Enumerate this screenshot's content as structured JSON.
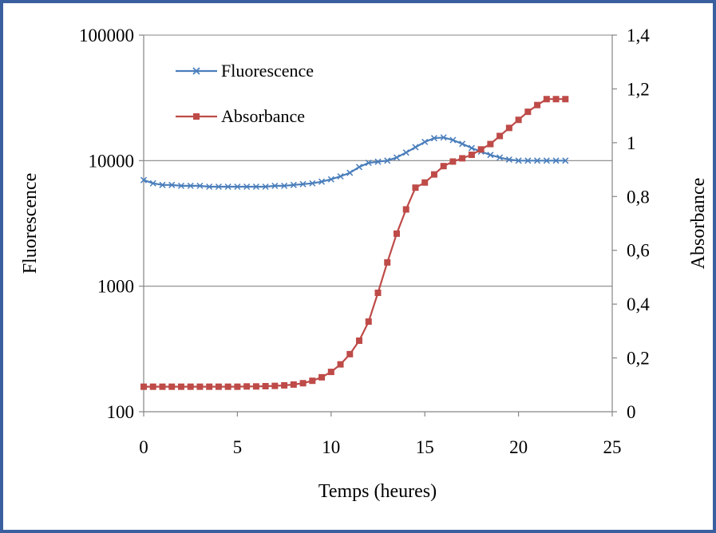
{
  "chart_data": {
    "type": "line",
    "xlabel": "Temps (heures)",
    "ylabel": "Fluorescence",
    "y2label": "Absorbance",
    "xlim": [
      0,
      25
    ],
    "ylim": [
      100,
      100000
    ],
    "y_scale": "log",
    "y2lim": [
      0,
      1.4
    ],
    "x_ticks": [
      "0",
      "5",
      "10",
      "15",
      "20",
      "25"
    ],
    "y_ticks": [
      "100",
      "1000",
      "10000",
      "100000"
    ],
    "y2_ticks": [
      "0",
      "0,2",
      "0,4",
      "0,6",
      "0,8",
      "1",
      "1,2",
      "1,4"
    ],
    "grid": "horizontal major lines on left axis",
    "legend_position": "top-left inside plot",
    "colors": {
      "fluorescence": "#4a7ebb",
      "absorbance": "#be4b48",
      "frame": "#3a5f9e"
    },
    "series": [
      {
        "name": "Fluorescence",
        "axis": "left",
        "marker": "x",
        "x": [
          0,
          0.5,
          1,
          1.5,
          2,
          2.5,
          3,
          3.5,
          4,
          4.5,
          5,
          5.5,
          6,
          6.5,
          7,
          7.5,
          8,
          8.5,
          9,
          9.5,
          10,
          10.5,
          11,
          11.5,
          12,
          12.5,
          13,
          13.5,
          14,
          14.5,
          15,
          15.5,
          16,
          16.5,
          17,
          17.5,
          18,
          18.5,
          19,
          19.5,
          20,
          20.5,
          21,
          21.5,
          22,
          22.5
        ],
        "y": [
          7000,
          6600,
          6400,
          6400,
          6300,
          6300,
          6300,
          6200,
          6200,
          6200,
          6200,
          6200,
          6200,
          6200,
          6300,
          6300,
          6400,
          6500,
          6600,
          6800,
          7100,
          7500,
          8000,
          8900,
          9600,
          9800,
          10000,
          10600,
          11600,
          12800,
          14100,
          15100,
          15300,
          14600,
          13600,
          12600,
          11800,
          11100,
          10600,
          10200,
          10000,
          10000,
          10000,
          10000,
          10000,
          10000
        ]
      },
      {
        "name": "Absorbance",
        "axis": "right",
        "marker": "square",
        "x": [
          0,
          0.5,
          1,
          1.5,
          2,
          2.5,
          3,
          3.5,
          4,
          4.5,
          5,
          5.5,
          6,
          6.5,
          7,
          7.5,
          8,
          8.5,
          9,
          9.5,
          10,
          10.5,
          11,
          11.5,
          12,
          12.5,
          13,
          13.5,
          14,
          14.5,
          15,
          15.5,
          16,
          16.5,
          17,
          17.5,
          18,
          18.5,
          19,
          19.5,
          20,
          20.5,
          21,
          21.5,
          22,
          22.5
        ],
        "y": [
          0.093,
          0.093,
          0.093,
          0.093,
          0.093,
          0.093,
          0.093,
          0.093,
          0.093,
          0.093,
          0.093,
          0.094,
          0.094,
          0.095,
          0.096,
          0.098,
          0.101,
          0.106,
          0.115,
          0.128,
          0.148,
          0.176,
          0.214,
          0.264,
          0.335,
          0.442,
          0.555,
          0.662,
          0.752,
          0.833,
          0.852,
          0.882,
          0.913,
          0.93,
          0.942,
          0.955,
          0.975,
          0.995,
          1.025,
          1.055,
          1.085,
          1.115,
          1.14,
          1.162,
          1.162,
          1.162
        ]
      }
    ]
  }
}
